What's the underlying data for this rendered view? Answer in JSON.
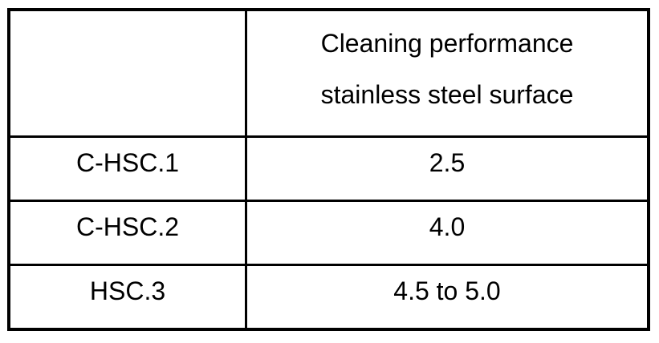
{
  "table": {
    "header": {
      "empty_cell": "",
      "line1": "Cleaning performance",
      "line2": "stainless steel surface"
    },
    "rows": [
      {
        "label": "C-HSC.1",
        "value": "2.5"
      },
      {
        "label": "C-HSC.2",
        "value": "4.0"
      },
      {
        "label": "HSC.3",
        "value": "4.5 to 5.0"
      }
    ]
  },
  "colors": {
    "border": "#000000",
    "text": "#000000",
    "background": "#ffffff"
  }
}
